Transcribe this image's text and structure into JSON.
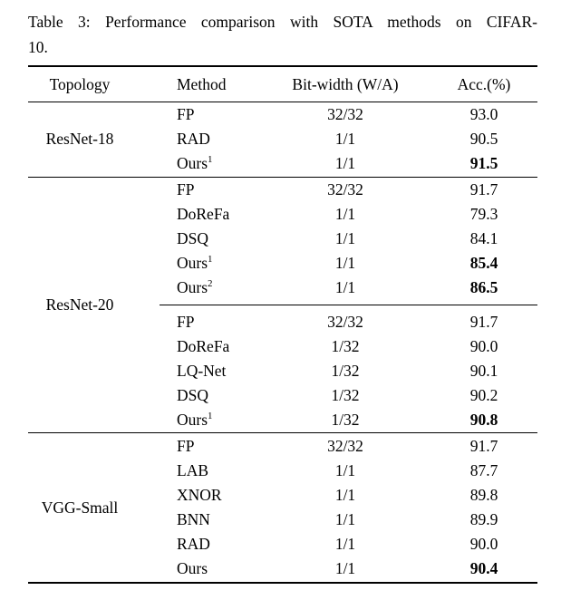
{
  "page": {
    "background": "#ffffff",
    "text_color": "#000000"
  },
  "caption": {
    "line1": "Table 3: Performance comparison with SOTA methods on CIFAR-",
    "line2": "10."
  },
  "table": {
    "headers": [
      "Topology",
      "Method",
      "Bit-width (W/A)",
      "Acc.(%)"
    ],
    "sections": [
      {
        "topology": "ResNet-18",
        "groups": [
          {
            "rows": [
              {
                "method": "FP",
                "sup": "",
                "bitwidth": "32/32",
                "acc": "93.0",
                "bold": false
              },
              {
                "method": "RAD",
                "sup": "",
                "bitwidth": "1/1",
                "acc": "90.5",
                "bold": false
              },
              {
                "method": "Ours",
                "sup": "1",
                "bitwidth": "1/1",
                "acc": "91.5",
                "bold": true
              }
            ]
          }
        ]
      },
      {
        "topology": "ResNet-20",
        "groups": [
          {
            "rows": [
              {
                "method": "FP",
                "sup": "",
                "bitwidth": "32/32",
                "acc": "91.7",
                "bold": false
              },
              {
                "method": "DoReFa",
                "sup": "",
                "bitwidth": "1/1",
                "acc": "79.3",
                "bold": false
              },
              {
                "method": "DSQ",
                "sup": "",
                "bitwidth": "1/1",
                "acc": "84.1",
                "bold": false
              },
              {
                "method": "Ours",
                "sup": "1",
                "bitwidth": "1/1",
                "acc": "85.4",
                "bold": true
              },
              {
                "method": "Ours",
                "sup": "2",
                "bitwidth": "1/1",
                "acc": "86.5",
                "bold": true
              }
            ]
          },
          {
            "rows": [
              {
                "method": "FP",
                "sup": "",
                "bitwidth": "32/32",
                "acc": "91.7",
                "bold": false
              },
              {
                "method": "DoReFa",
                "sup": "",
                "bitwidth": "1/32",
                "acc": "90.0",
                "bold": false
              },
              {
                "method": "LQ-Net",
                "sup": "",
                "bitwidth": "1/32",
                "acc": "90.1",
                "bold": false
              },
              {
                "method": "DSQ",
                "sup": "",
                "bitwidth": "1/32",
                "acc": "90.2",
                "bold": false
              },
              {
                "method": "Ours",
                "sup": "1",
                "bitwidth": "1/32",
                "acc": "90.8",
                "bold": true
              }
            ]
          }
        ]
      },
      {
        "topology": "VGG-Small",
        "groups": [
          {
            "rows": [
              {
                "method": "FP",
                "sup": "",
                "bitwidth": "32/32",
                "acc": "91.7",
                "bold": false
              },
              {
                "method": "LAB",
                "sup": "",
                "bitwidth": "1/1",
                "acc": "87.7",
                "bold": false
              },
              {
                "method": "XNOR",
                "sup": "",
                "bitwidth": "1/1",
                "acc": "89.8",
                "bold": false
              },
              {
                "method": "BNN",
                "sup": "",
                "bitwidth": "1/1",
                "acc": "89.9",
                "bold": false
              },
              {
                "method": "RAD",
                "sup": "",
                "bitwidth": "1/1",
                "acc": "90.0",
                "bold": false
              },
              {
                "method": "Ours",
                "sup": "",
                "bitwidth": "1/1",
                "acc": "90.4",
                "bold": true
              }
            ]
          }
        ]
      }
    ]
  }
}
